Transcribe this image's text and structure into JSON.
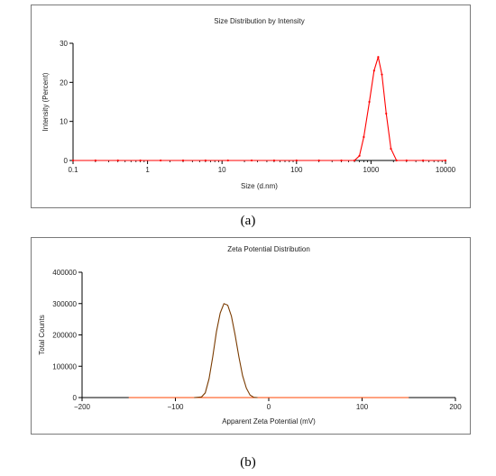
{
  "captions": {
    "a": "(a)",
    "b": "(b)"
  },
  "colors": {
    "series_a": "#ff0000",
    "series_b": "#7a3b00",
    "baseline_b": "#ff4500",
    "axis": "#000000"
  },
  "chart_data": [
    {
      "type": "line",
      "title": "Size Distribution by Intensity",
      "xlabel": "Size (d.nm)",
      "ylabel": "Intensity (Percent)",
      "x_scale": "log",
      "xlim": [
        0.1,
        10000
      ],
      "ylim": [
        0,
        30
      ],
      "x_ticks": [
        0.1,
        1,
        10,
        100,
        1000,
        10000
      ],
      "x_tick_labels": [
        "0.1",
        "1",
        "10",
        "100",
        "1000",
        "10000"
      ],
      "y_ticks": [
        0,
        10,
        20,
        30
      ],
      "y_tick_labels": [
        "0",
        "10",
        "20",
        "30"
      ],
      "grid": false,
      "series": [
        {
          "x": [
            0.1,
            0.2,
            0.4,
            0.8,
            1.5,
            3,
            6,
            12,
            25,
            50,
            100,
            200,
            400,
            600,
            700,
            800,
            950,
            1100,
            1250,
            1400,
            1600,
            1850,
            2200,
            3000,
            5000,
            10000
          ],
          "values": [
            0,
            0,
            0,
            0,
            0,
            0,
            0,
            0,
            0,
            0,
            0,
            0,
            0,
            0,
            1.2,
            6,
            15,
            23,
            26.5,
            22,
            12,
            3,
            0,
            0,
            0,
            0
          ]
        }
      ]
    },
    {
      "type": "line",
      "title": "Zeta Potential Distribution",
      "xlabel": "Apparent Zeta Potential (mV)",
      "ylabel": "Total Counts",
      "xlim": [
        -200,
        200
      ],
      "ylim": [
        0,
        400000
      ],
      "x_ticks": [
        -200,
        -100,
        0,
        100,
        200
      ],
      "x_tick_labels": [
        "−200",
        "−100",
        "0",
        "100",
        "200"
      ],
      "y_ticks": [
        0,
        100000,
        200000,
        300000,
        400000
      ],
      "y_tick_labels": [
        "0",
        "100000",
        "200000",
        "300000",
        "400000"
      ],
      "grid": false,
      "series": [
        {
          "x": [
            -80,
            -72,
            -68,
            -64,
            -60,
            -56,
            -52,
            -48,
            -44,
            -40,
            -36,
            -32,
            -28,
            -24,
            -20,
            -16,
            -12
          ],
          "values": [
            0,
            2000,
            15000,
            60000,
            130000,
            210000,
            270000,
            300000,
            295000,
            260000,
            200000,
            130000,
            70000,
            30000,
            8000,
            1000,
            0
          ]
        }
      ]
    }
  ]
}
